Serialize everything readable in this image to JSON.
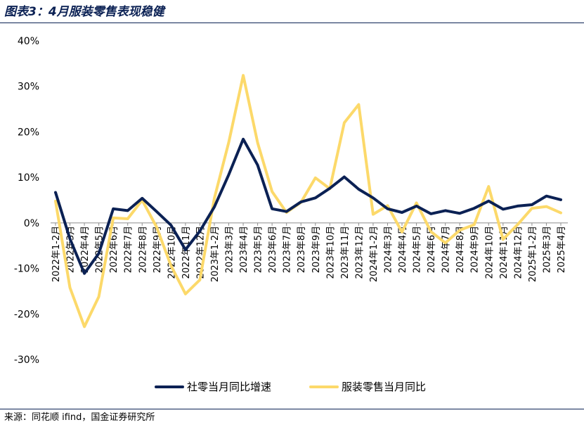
{
  "header": {
    "title": "图表3：4月服装零售表现稳健"
  },
  "footer": {
    "source": "来源：同花顺 ifind，国金证券研究所"
  },
  "chart_data": {
    "type": "line",
    "title": "图表3：4月服装零售表现稳健",
    "xlabel": "",
    "ylabel": "",
    "ylim": [
      -30,
      40
    ],
    "yticks": [
      40,
      30,
      20,
      10,
      0,
      -10,
      -20,
      -30
    ],
    "ytick_labels": [
      "40%",
      "30%",
      "20%",
      "10%",
      "0%",
      "-10%",
      "-20%",
      "-30%"
    ],
    "grid": false,
    "legend_position": "bottom",
    "categories": [
      "2022年1-2月",
      "2022年3月",
      "2022年4月",
      "2022年5月",
      "2022年6月",
      "2022年7月",
      "2022年8月",
      "2022年9月",
      "2022年10月",
      "2022年11月",
      "2022年12月",
      "2023年1-2月",
      "2023年3月",
      "2023年4月",
      "2023年5月",
      "2023年6月",
      "2023年7月",
      "2023年8月",
      "2023年9月",
      "2023年10月",
      "2023年11月",
      "2023年12月",
      "2024年1-2月",
      "2024年3月",
      "2024年4月",
      "2024年5月",
      "2024年6月",
      "2024年7月",
      "2024年8月",
      "2024年9月",
      "2024年10月",
      "2024年11月",
      "2024年12月",
      "2025年1-2月",
      "2025年3月",
      "2025年4月"
    ],
    "series": [
      {
        "name": "社零当月同比增速",
        "color": "#0b2154",
        "values": [
          6.7,
          -3.5,
          -11.1,
          -6.7,
          3.1,
          2.7,
          5.4,
          2.5,
          -0.5,
          -5.9,
          -1.8,
          3.5,
          10.6,
          18.4,
          12.7,
          3.1,
          2.5,
          4.6,
          5.5,
          7.6,
          10.1,
          7.4,
          5.5,
          3.1,
          2.3,
          3.7,
          2.0,
          2.7,
          2.1,
          3.2,
          4.8,
          3.0,
          3.7,
          4.0,
          5.9,
          5.1
        ]
      },
      {
        "name": "服装零售当月同比",
        "color": "#fcd96a",
        "values": [
          4.8,
          -14.2,
          -22.8,
          -16.2,
          1.1,
          0.9,
          5.0,
          -0.9,
          -9.4,
          -15.6,
          -12.5,
          5.4,
          17.7,
          32.4,
          17.6,
          6.9,
          2.3,
          4.5,
          9.9,
          7.5,
          22.0,
          26.0,
          1.9,
          3.8,
          -2.0,
          4.4,
          -1.9,
          -4.4,
          -1.6,
          -0.4,
          8.0,
          -3.6,
          -0.4,
          3.2,
          3.6,
          2.2
        ]
      }
    ]
  }
}
